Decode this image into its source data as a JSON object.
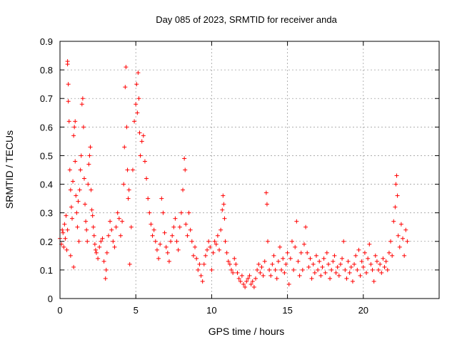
{
  "chart_data": {
    "type": "scatter",
    "title": "Day 085 of 2023, SRMTID for receiver anda",
    "xlabel": "GPS time / hours",
    "ylabel": "SRMTID / TECUs",
    "xlim": [
      0,
      25
    ],
    "ylim": [
      0,
      0.9
    ],
    "xticks": [
      0,
      5,
      10,
      15,
      20
    ],
    "xtick_labels": [
      "0",
      "5",
      "10",
      "15",
      "20"
    ],
    "yticks": [
      0,
      0.1,
      0.2,
      0.3,
      0.4,
      0.5,
      0.6,
      0.7,
      0.8,
      0.9
    ],
    "ytick_labels": [
      "0",
      "0.1",
      "0.2",
      "0.3",
      "0.4",
      "0.5",
      "0.6",
      "0.7",
      "0.8",
      "0.9"
    ],
    "grid": true,
    "marker": "+",
    "marker_color": "#ff0000",
    "series": [
      {
        "name": "anda",
        "points": [
          [
            0.0,
            0.21
          ],
          [
            0.1,
            0.19
          ],
          [
            0.15,
            0.24
          ],
          [
            0.2,
            0.23
          ],
          [
            0.25,
            0.18
          ],
          [
            0.3,
            0.26
          ],
          [
            0.35,
            0.21
          ],
          [
            0.4,
            0.29
          ],
          [
            0.45,
            0.17
          ],
          [
            0.5,
            0.24
          ],
          [
            0.5,
            0.83
          ],
          [
            0.5,
            0.82
          ],
          [
            0.55,
            0.75
          ],
          [
            0.55,
            0.69
          ],
          [
            0.6,
            0.62
          ],
          [
            0.65,
            0.45
          ],
          [
            0.7,
            0.38
          ],
          [
            0.7,
            0.15
          ],
          [
            0.75,
            0.32
          ],
          [
            0.8,
            0.28
          ],
          [
            0.85,
            0.41
          ],
          [
            0.9,
            0.11
          ],
          [
            0.9,
            0.57
          ],
          [
            0.95,
            0.6
          ],
          [
            1.0,
            0.48
          ],
          [
            1.0,
            0.62
          ],
          [
            1.05,
            0.36
          ],
          [
            1.1,
            0.3
          ],
          [
            1.15,
            0.25
          ],
          [
            1.2,
            0.34
          ],
          [
            1.25,
            0.2
          ],
          [
            1.3,
            0.38
          ],
          [
            1.35,
            0.45
          ],
          [
            1.4,
            0.5
          ],
          [
            1.45,
            0.68
          ],
          [
            1.5,
            0.7
          ],
          [
            1.55,
            0.6
          ],
          [
            1.6,
            0.42
          ],
          [
            1.65,
            0.33
          ],
          [
            1.7,
            0.27
          ],
          [
            1.75,
            0.24
          ],
          [
            1.8,
            0.2
          ],
          [
            1.85,
            0.4
          ],
          [
            1.9,
            0.47
          ],
          [
            1.95,
            0.5
          ],
          [
            2.0,
            0.53
          ],
          [
            2.05,
            0.38
          ],
          [
            2.1,
            0.31
          ],
          [
            2.15,
            0.29
          ],
          [
            2.2,
            0.25
          ],
          [
            2.25,
            0.22
          ],
          [
            2.3,
            0.19
          ],
          [
            2.35,
            0.17
          ],
          [
            2.4,
            0.16
          ],
          [
            2.5,
            0.14
          ],
          [
            2.6,
            0.18
          ],
          [
            2.7,
            0.2
          ],
          [
            2.8,
            0.21
          ],
          [
            2.9,
            0.13
          ],
          [
            3.0,
            0.07
          ],
          [
            3.05,
            0.1
          ],
          [
            3.1,
            0.16
          ],
          [
            3.2,
            0.22
          ],
          [
            3.3,
            0.27
          ],
          [
            3.4,
            0.24
          ],
          [
            3.5,
            0.2
          ],
          [
            3.6,
            0.18
          ],
          [
            3.7,
            0.25
          ],
          [
            3.8,
            0.3
          ],
          [
            3.9,
            0.28
          ],
          [
            4.0,
            0.22
          ],
          [
            4.1,
            0.27
          ],
          [
            4.2,
            0.4
          ],
          [
            4.25,
            0.53
          ],
          [
            4.3,
            0.74
          ],
          [
            4.35,
            0.81
          ],
          [
            4.4,
            0.6
          ],
          [
            4.45,
            0.45
          ],
          [
            4.5,
            0.35
          ],
          [
            4.55,
            0.38
          ],
          [
            4.6,
            0.12
          ],
          [
            4.7,
            0.25
          ],
          [
            4.8,
            0.45
          ],
          [
            4.9,
            0.62
          ],
          [
            5.0,
            0.68
          ],
          [
            5.05,
            0.75
          ],
          [
            5.1,
            0.65
          ],
          [
            5.15,
            0.79
          ],
          [
            5.2,
            0.7
          ],
          [
            5.25,
            0.58
          ],
          [
            5.3,
            0.5
          ],
          [
            5.4,
            0.55
          ],
          [
            5.5,
            0.57
          ],
          [
            5.6,
            0.48
          ],
          [
            5.7,
            0.42
          ],
          [
            5.8,
            0.35
          ],
          [
            5.9,
            0.3
          ],
          [
            6.0,
            0.26
          ],
          [
            6.1,
            0.22
          ],
          [
            6.2,
            0.24
          ],
          [
            6.3,
            0.2
          ],
          [
            6.4,
            0.17
          ],
          [
            6.5,
            0.14
          ],
          [
            6.6,
            0.19
          ],
          [
            6.7,
            0.35
          ],
          [
            6.8,
            0.3
          ],
          [
            6.9,
            0.23
          ],
          [
            7.0,
            0.18
          ],
          [
            7.1,
            0.16
          ],
          [
            7.2,
            0.13
          ],
          [
            7.3,
            0.2
          ],
          [
            7.4,
            0.22
          ],
          [
            7.5,
            0.25
          ],
          [
            7.6,
            0.28
          ],
          [
            7.7,
            0.2
          ],
          [
            7.8,
            0.17
          ],
          [
            7.9,
            0.25
          ],
          [
            8.0,
            0.3
          ],
          [
            8.1,
            0.38
          ],
          [
            8.2,
            0.49
          ],
          [
            8.25,
            0.45
          ],
          [
            8.3,
            0.26
          ],
          [
            8.4,
            0.22
          ],
          [
            8.5,
            0.3
          ],
          [
            8.6,
            0.24
          ],
          [
            8.7,
            0.2
          ],
          [
            8.8,
            0.15
          ],
          [
            8.9,
            0.18
          ],
          [
            9.0,
            0.14
          ],
          [
            9.1,
            0.1
          ],
          [
            9.2,
            0.12
          ],
          [
            9.3,
            0.08
          ],
          [
            9.4,
            0.06
          ],
          [
            9.5,
            0.12
          ],
          [
            9.6,
            0.15
          ],
          [
            9.7,
            0.17
          ],
          [
            9.8,
            0.2
          ],
          [
            9.9,
            0.18
          ],
          [
            10.0,
            0.1
          ],
          [
            10.1,
            0.16
          ],
          [
            10.2,
            0.2
          ],
          [
            10.3,
            0.19
          ],
          [
            10.4,
            0.22
          ],
          [
            10.5,
            0.17
          ],
          [
            10.6,
            0.24
          ],
          [
            10.7,
            0.31
          ],
          [
            10.75,
            0.36
          ],
          [
            10.8,
            0.33
          ],
          [
            10.85,
            0.28
          ],
          [
            10.9,
            0.2
          ],
          [
            11.0,
            0.16
          ],
          [
            11.1,
            0.13
          ],
          [
            11.2,
            0.12
          ],
          [
            11.3,
            0.1
          ],
          [
            11.4,
            0.09
          ],
          [
            11.5,
            0.14
          ],
          [
            11.6,
            0.12
          ],
          [
            11.7,
            0.09
          ],
          [
            11.8,
            0.07
          ],
          [
            11.9,
            0.06
          ],
          [
            12.0,
            0.08
          ],
          [
            12.1,
            0.05
          ],
          [
            12.2,
            0.04
          ],
          [
            12.3,
            0.06
          ],
          [
            12.4,
            0.07
          ],
          [
            12.5,
            0.08
          ],
          [
            12.6,
            0.05
          ],
          [
            12.7,
            0.06
          ],
          [
            12.8,
            0.04
          ],
          [
            12.9,
            0.07
          ],
          [
            13.0,
            0.1
          ],
          [
            13.1,
            0.12
          ],
          [
            13.2,
            0.09
          ],
          [
            13.3,
            0.11
          ],
          [
            13.4,
            0.08
          ],
          [
            13.5,
            0.13
          ],
          [
            13.6,
            0.37
          ],
          [
            13.65,
            0.33
          ],
          [
            13.7,
            0.2
          ],
          [
            13.8,
            0.1
          ],
          [
            13.9,
            0.08
          ],
          [
            14.0,
            0.12
          ],
          [
            14.1,
            0.15
          ],
          [
            14.2,
            0.1
          ],
          [
            14.3,
            0.07
          ],
          [
            14.4,
            0.13
          ],
          [
            14.5,
            0.18
          ],
          [
            14.6,
            0.1
          ],
          [
            14.7,
            0.14
          ],
          [
            14.8,
            0.09
          ],
          [
            14.9,
            0.12
          ],
          [
            15.0,
            0.16
          ],
          [
            15.1,
            0.05
          ],
          [
            15.2,
            0.14
          ],
          [
            15.3,
            0.2
          ],
          [
            15.4,
            0.1
          ],
          [
            15.5,
            0.18
          ],
          [
            15.6,
            0.27
          ],
          [
            15.7,
            0.13
          ],
          [
            15.8,
            0.08
          ],
          [
            15.9,
            0.16
          ],
          [
            16.0,
            0.1
          ],
          [
            16.1,
            0.19
          ],
          [
            16.2,
            0.25
          ],
          [
            16.3,
            0.16
          ],
          [
            16.4,
            0.11
          ],
          [
            16.5,
            0.14
          ],
          [
            16.6,
            0.07
          ],
          [
            16.7,
            0.12
          ],
          [
            16.8,
            0.09
          ],
          [
            16.9,
            0.15
          ],
          [
            17.0,
            0.1
          ],
          [
            17.1,
            0.13
          ],
          [
            17.2,
            0.08
          ],
          [
            17.3,
            0.11
          ],
          [
            17.4,
            0.14
          ],
          [
            17.5,
            0.09
          ],
          [
            17.6,
            0.16
          ],
          [
            17.7,
            0.12
          ],
          [
            17.8,
            0.07
          ],
          [
            17.9,
            0.1
          ],
          [
            18.0,
            0.13
          ],
          [
            18.1,
            0.15
          ],
          [
            18.2,
            0.09
          ],
          [
            18.3,
            0.11
          ],
          [
            18.4,
            0.08
          ],
          [
            18.5,
            0.12
          ],
          [
            18.6,
            0.14
          ],
          [
            18.7,
            0.2
          ],
          [
            18.8,
            0.1
          ],
          [
            18.9,
            0.07
          ],
          [
            19.0,
            0.13
          ],
          [
            19.1,
            0.09
          ],
          [
            19.2,
            0.11
          ],
          [
            19.3,
            0.06
          ],
          [
            19.4,
            0.12
          ],
          [
            19.5,
            0.15
          ],
          [
            19.6,
            0.1
          ],
          [
            19.7,
            0.17
          ],
          [
            19.8,
            0.08
          ],
          [
            19.9,
            0.13
          ],
          [
            20.0,
            0.11
          ],
          [
            20.1,
            0.16
          ],
          [
            20.2,
            0.09
          ],
          [
            20.3,
            0.14
          ],
          [
            20.4,
            0.19
          ],
          [
            20.5,
            0.12
          ],
          [
            20.6,
            0.1
          ],
          [
            20.7,
            0.06
          ],
          [
            20.8,
            0.15
          ],
          [
            20.9,
            0.13
          ],
          [
            21.0,
            0.1
          ],
          [
            21.1,
            0.12
          ],
          [
            21.2,
            0.09
          ],
          [
            21.3,
            0.14
          ],
          [
            21.4,
            0.11
          ],
          [
            21.5,
            0.13
          ],
          [
            21.6,
            0.1
          ],
          [
            21.7,
            0.16
          ],
          [
            21.8,
            0.2
          ],
          [
            21.9,
            0.15
          ],
          [
            22.0,
            0.27
          ],
          [
            22.1,
            0.32
          ],
          [
            22.15,
            0.4
          ],
          [
            22.2,
            0.43
          ],
          [
            22.25,
            0.36
          ],
          [
            22.3,
            0.22
          ],
          [
            22.4,
            0.18
          ],
          [
            22.5,
            0.26
          ],
          [
            22.6,
            0.21
          ],
          [
            22.7,
            0.15
          ],
          [
            22.8,
            0.24
          ],
          [
            22.9,
            0.2
          ]
        ]
      }
    ]
  }
}
